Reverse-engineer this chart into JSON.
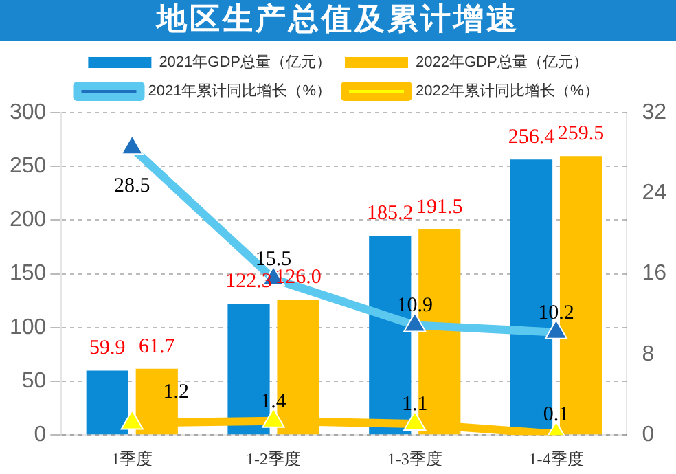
{
  "chart_data": {
    "type": "bar",
    "title": "地区生产总值及累计增速",
    "categories": [
      "1季度",
      "1-2季度",
      "1-3季度",
      "1-4季度"
    ],
    "series": [
      {
        "name": "2021年GDP总量（亿元）",
        "color": "#0b8ad6",
        "values": [
          59.9,
          122.3,
          185.2,
          256.4
        ],
        "value_labels": [
          "59.9",
          "122.3",
          "185.2",
          "256.4"
        ]
      },
      {
        "name": "2022年GDP总量（亿元）",
        "color": "#ffc000",
        "values": [
          61.7,
          126.0,
          191.5,
          259.5
        ],
        "value_labels": [
          "61.7",
          "126.0",
          "191.5",
          "259.5"
        ]
      },
      {
        "name": "2021年累计同比增长（%）",
        "type": "line",
        "axis": "y2",
        "color": "#5bc8ef",
        "values": [
          28.5,
          15.5,
          10.9,
          10.2
        ],
        "value_labels": [
          "28.5",
          "15.5",
          "10.9",
          "10.2"
        ]
      },
      {
        "name": "2022年累计同比增长（%）",
        "type": "line",
        "axis": "y2",
        "color": "#ffc000",
        "values": [
          1.2,
          1.4,
          1.1,
          0.1
        ],
        "value_labels": [
          "1.2",
          "1.4",
          "1.1",
          "0.1"
        ]
      }
    ],
    "ylim": [
      0,
      300
    ],
    "yticks": [
      0,
      50,
      100,
      150,
      200,
      250,
      300
    ],
    "y2lim": [
      0,
      32
    ],
    "y2ticks": [
      0,
      8,
      16,
      24,
      32
    ],
    "grid": "y",
    "legend": "top",
    "marker": "triangle"
  }
}
